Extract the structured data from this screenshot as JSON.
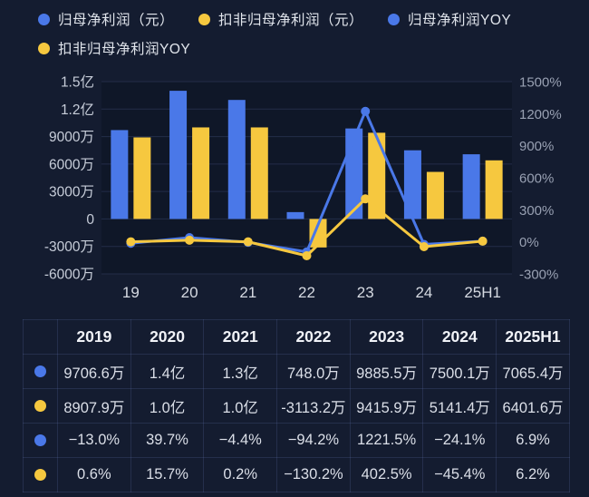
{
  "colors": {
    "background": "#141c30",
    "plot_background": "#0f1728",
    "blue": "#4a78e8",
    "yellow": "#f6c83f",
    "grid": "#232d49",
    "left_axis_label": "#c7cdd9",
    "right_axis_label": "#98a0b2",
    "x_axis_label": "#d6dae2",
    "legend_text": "#e1e5ec",
    "table_border": "#3a4468",
    "table_text": "#dbdfe8"
  },
  "legend": {
    "items": [
      {
        "id": "profit-parent",
        "label": "归母净利润（元）",
        "color": "#4a78e8"
      },
      {
        "id": "profit-deducted",
        "label": "扣非归母净利润（元）",
        "color": "#f6c83f"
      },
      {
        "id": "profit-parent-yoy",
        "label": "归母净利润YOY",
        "color": "#4a78e8"
      },
      {
        "id": "profit-deducted-yoy",
        "label": "扣非归母净利润YOY",
        "color": "#f6c83f"
      }
    ]
  },
  "chart_data": {
    "type": "combo-bar-line",
    "legend_position": "top",
    "grid": true,
    "categories": [
      "19",
      "20",
      "21",
      "22",
      "23",
      "24",
      "25H1"
    ],
    "series": [
      {
        "id": "profit-parent",
        "name": "归母净利润（元）",
        "kind": "bar",
        "axis": "left",
        "unit": "万元",
        "color": "#4a78e8",
        "values": [
          9706.6,
          14000,
          13000,
          748.0,
          9885.5,
          7500.1,
          7065.4
        ]
      },
      {
        "id": "profit-deducted",
        "name": "扣非归母净利润（元）",
        "kind": "bar",
        "axis": "left",
        "unit": "万元",
        "color": "#f6c83f",
        "values": [
          8907.9,
          10000,
          10000,
          -3113.2,
          9415.9,
          5141.4,
          6401.6
        ]
      },
      {
        "id": "profit-parent-yoy",
        "name": "归母净利润YOY",
        "kind": "line",
        "axis": "right",
        "unit": "%",
        "color": "#4a78e8",
        "values": [
          -13.0,
          39.7,
          -4.4,
          -94.2,
          1221.5,
          -24.1,
          6.9
        ]
      },
      {
        "id": "profit-deducted-yoy",
        "name": "扣非归母净利润YOY",
        "kind": "line",
        "axis": "right",
        "unit": "%",
        "color": "#f6c83f",
        "values": [
          0.6,
          15.7,
          0.2,
          -130.2,
          402.5,
          -45.4,
          6.2
        ]
      }
    ],
    "left_axis": {
      "unit": "万元",
      "min": -6000,
      "max": 15000,
      "ticks": [
        {
          "v": 15000,
          "label": "1.5亿"
        },
        {
          "v": 12000,
          "label": "1.2亿"
        },
        {
          "v": 9000,
          "label": "9000万"
        },
        {
          "v": 6000,
          "label": "6000万"
        },
        {
          "v": 3000,
          "label": "3000万"
        },
        {
          "v": 0,
          "label": "0"
        },
        {
          "v": -3000,
          "label": "-3000万"
        },
        {
          "v": -6000,
          "label": "-6000万"
        }
      ]
    },
    "right_axis": {
      "unit": "%",
      "min": -300,
      "max": 1500,
      "ticks": [
        {
          "v": 1500,
          "label": "1500%"
        },
        {
          "v": 1200,
          "label": "1200%"
        },
        {
          "v": 900,
          "label": "900%"
        },
        {
          "v": 600,
          "label": "600%"
        },
        {
          "v": 300,
          "label": "300%"
        },
        {
          "v": 0,
          "label": "0%"
        },
        {
          "v": -300,
          "label": "-300%"
        }
      ]
    }
  },
  "table": {
    "header": [
      "",
      "2019",
      "2020",
      "2021",
      "2022",
      "2023",
      "2024",
      "2025H1"
    ],
    "rows": [
      {
        "series": "profit-parent",
        "dot": "#4a78e8",
        "cells": [
          "9706.6万",
          "1.4亿",
          "1.3亿",
          "748.0万",
          "9885.5万",
          "7500.1万",
          "7065.4万"
        ]
      },
      {
        "series": "profit-deducted",
        "dot": "#f6c83f",
        "cells": [
          "8907.9万",
          "1.0亿",
          "1.0亿",
          "-3113.2万",
          "9415.9万",
          "5141.4万",
          "6401.6万"
        ]
      },
      {
        "series": "profit-parent-yoy",
        "dot": "#4a78e8",
        "cells": [
          "−13.0%",
          "39.7%",
          "−4.4%",
          "−94.2%",
          "1221.5%",
          "−24.1%",
          "6.9%"
        ]
      },
      {
        "series": "profit-deducted-yoy",
        "dot": "#f6c83f",
        "cells": [
          "0.6%",
          "15.7%",
          "0.2%",
          "−130.2%",
          "402.5%",
          "−45.4%",
          "6.2%"
        ]
      }
    ]
  }
}
